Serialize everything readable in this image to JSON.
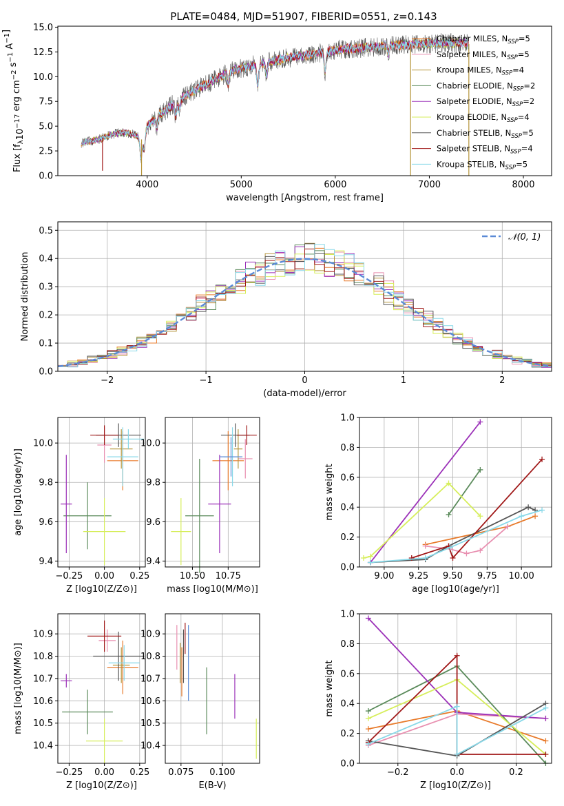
{
  "figure_title": "PLATE=0484, MJD=51907, FIBERID=0551, z=0.143",
  "colors": {
    "c1": "#e87a2a",
    "c2": "#e88fb0",
    "c3": "#b5943a",
    "c4": "#5a8a5a",
    "c5": "#9b30b8",
    "c6": "#d6ee5a",
    "c7": "#555555",
    "c8": "#a01818",
    "c9": "#88d8e8",
    "grid": "#b0b0b0",
    "gauss": "#5b8ad6"
  },
  "chart_data": [
    {
      "id": "spectrum",
      "type": "line",
      "xlabel": "wavelength [Angstrom, rest frame]",
      "ylabel": "Flux [f_λ 10^-17 erg cm^-2 s^-1 A^-1]",
      "xlim": [
        3050,
        8300
      ],
      "ylim": [
        0,
        15.1
      ],
      "xticks": [
        4000,
        5000,
        6000,
        7000,
        8000
      ],
      "yticks": [
        0.0,
        2.5,
        5.0,
        7.5,
        10.0,
        12.5,
        15.0
      ],
      "grid": false,
      "legend_position": "top-right",
      "legend": [
        {
          "label": "Chabrier MILES, N",
          "sub": "SSP",
          "value": "=5",
          "color": "c1"
        },
        {
          "label": "Salpeter MILES, N",
          "sub": "SSP",
          "value": "=5",
          "color": "c2"
        },
        {
          "label": "Kroupa MILES, N",
          "sub": "SSP",
          "value": "=4",
          "color": "c3"
        },
        {
          "label": "Chabrier ELODIE, N",
          "sub": "SSP",
          "value": "=2",
          "color": "c4"
        },
        {
          "label": "Salpeter ELODIE, N",
          "sub": "SSP",
          "value": "=2",
          "color": "c5"
        },
        {
          "label": "Kroupa ELODIE, N",
          "sub": "SSP",
          "value": "=4",
          "color": "c6"
        },
        {
          "label": "Chabrier STELIB, N",
          "sub": "SSP",
          "value": "=5",
          "color": "c7"
        },
        {
          "label": "Salpeter STELIB, N",
          "sub": "SSP",
          "value": "=4",
          "color": "c8"
        },
        {
          "label": "Kroupa STELIB, N",
          "sub": "SSP",
          "value": "=5",
          "color": "c9"
        }
      ],
      "continuum": [
        [
          3300,
          3.3
        ],
        [
          3500,
          3.7
        ],
        [
          3600,
          4.1
        ],
        [
          3750,
          4.4
        ],
        [
          3850,
          4.2
        ],
        [
          3950,
          3.6
        ],
        [
          4000,
          5.0
        ],
        [
          4100,
          5.9
        ],
        [
          4300,
          7.4
        ],
        [
          4500,
          8.6
        ],
        [
          4700,
          9.6
        ],
        [
          4900,
          10.6
        ],
        [
          5100,
          11.1
        ],
        [
          5300,
          11.5
        ],
        [
          5500,
          11.9
        ],
        [
          5700,
          12.2
        ],
        [
          5900,
          12.5
        ],
        [
          6100,
          12.8
        ],
        [
          6300,
          12.9
        ],
        [
          6500,
          13.1
        ],
        [
          6700,
          13.2
        ],
        [
          6900,
          13.3
        ],
        [
          7100,
          13.4
        ],
        [
          7300,
          13.4
        ],
        [
          7420,
          13.3
        ]
      ],
      "data_range": [
        3300,
        7420
      ],
      "dips": [
        [
          3934,
          2.0
        ],
        [
          3969,
          1.5
        ],
        [
          4102,
          1.0
        ],
        [
          4304,
          1.5
        ],
        [
          4340,
          1.0
        ],
        [
          4861,
          1.3
        ],
        [
          5175,
          2.2
        ],
        [
          5270,
          1.3
        ],
        [
          5890,
          2.0
        ],
        [
          6563,
          0.8
        ]
      ],
      "spikes": [
        [
          3525,
          0.5
        ],
        [
          3940,
          0
        ],
        [
          6800,
          0
        ],
        [
          7420,
          0
        ]
      ]
    },
    {
      "id": "residuals",
      "type": "step-histogram",
      "xlabel": "(data-model)/error",
      "ylabel": "Normed distribution",
      "xlim": [
        -2.5,
        2.5
      ],
      "ylim": [
        0,
        0.53
      ],
      "xticks": [
        -2,
        -1,
        0,
        1,
        2
      ],
      "yticks": [
        0.0,
        0.1,
        0.2,
        0.3,
        0.4,
        0.5
      ],
      "grid": true,
      "legend_position": "top-right",
      "legend": [
        {
          "label": "𝒩(0, 1)",
          "style": "dashed",
          "color": "gauss"
        }
      ],
      "bin_width": 0.1,
      "bin_start": -2.5,
      "gaussian": {
        "mean": 0,
        "sigma": 1
      }
    },
    {
      "id": "age-vs-Z",
      "type": "errorbar",
      "xlabel": "Z [log10(Z/Z⊙)]",
      "ylabel": "age  [log10(age/yr)]",
      "xlim": [
        -0.33,
        0.29
      ],
      "ylim": [
        9.37,
        10.13
      ],
      "xticks": [
        -0.25,
        0.0,
        0.25
      ],
      "xticklabels": [
        "−0.25",
        "0.00",
        "0.25"
      ],
      "yticks": [
        9.4,
        9.6,
        9.8,
        10.0
      ],
      "yticklabels": [
        "9.4",
        "9.6",
        "9.8",
        "10.0"
      ],
      "grid": true,
      "points": [
        {
          "color": "c1",
          "x": 0.13,
          "xerr": 0.11,
          "y": 9.91,
          "yerr": 0.15
        },
        {
          "color": "c2",
          "x": 0.0,
          "xerr": 0.05,
          "y": 9.99,
          "yerr": 0.09
        },
        {
          "color": "c3",
          "x": 0.12,
          "xerr": 0.08,
          "y": 9.97,
          "yerr": 0.1
        },
        {
          "color": "c4",
          "x": -0.12,
          "xerr": 0.17,
          "y": 9.63,
          "yerr": 0.17
        },
        {
          "color": "c5",
          "x": -0.27,
          "xerr": 0.04,
          "y": 9.69,
          "yerr": 0.25
        },
        {
          "color": "c6",
          "x": 0.0,
          "xerr": 0.15,
          "y": 9.55,
          "yerr": 0.17
        },
        {
          "color": "c7",
          "x": 0.1,
          "xerr": 0.16,
          "y": 10.04,
          "yerr": 0.06
        },
        {
          "color": "c8",
          "x": -0.0,
          "xerr": 0.1,
          "y": 10.04,
          "yerr": 0.05
        },
        {
          "color": "c9",
          "x": 0.13,
          "xerr": 0.11,
          "y": 9.93,
          "yerr": 0.15
        },
        {
          "color": "c9",
          "x": 0.17,
          "xerr": 0.11,
          "y": 10.02,
          "yerr": 0.05
        }
      ]
    },
    {
      "id": "age-vs-mass",
      "type": "errorbar",
      "xlabel": "mass [log10(M/M⊙)]",
      "ylabel": "",
      "xlim": [
        10.31,
        10.97
      ],
      "ylim": [
        9.37,
        10.13
      ],
      "xticks": [
        10.5,
        10.75
      ],
      "xticklabels": [
        "10.50",
        "10.75"
      ],
      "yticks": [
        9.4,
        9.6,
        9.8,
        10.0
      ],
      "yticklabels": [
        "9.4",
        "9.6",
        "9.8",
        "10.0"
      ],
      "grid": true,
      "points": [
        {
          "color": "c1",
          "x": 10.75,
          "xerr": 0.11,
          "y": 9.91,
          "yerr": 0.15
        },
        {
          "color": "c2",
          "x": 10.87,
          "xerr": 0.05,
          "y": 9.92,
          "yerr": 0.1
        },
        {
          "color": "c3",
          "x": 10.82,
          "xerr": 0.03,
          "y": 9.97,
          "yerr": 0.1
        },
        {
          "color": "c4",
          "x": 10.55,
          "xerr": 0.1,
          "y": 9.63,
          "yerr": 0.29
        },
        {
          "color": "c5",
          "x": 10.69,
          "xerr": 0.08,
          "y": 9.69,
          "yerr": 0.25
        },
        {
          "color": "c6",
          "x": 10.42,
          "xerr": 0.07,
          "y": 9.55,
          "yerr": 0.17
        },
        {
          "color": "c7",
          "x": 10.8,
          "xerr": 0.1,
          "y": 10.04,
          "yerr": 0.06
        },
        {
          "color": "c8",
          "x": 10.88,
          "xerr": 0.07,
          "y": 10.04,
          "yerr": 0.05
        },
        {
          "color": "c9",
          "x": 10.78,
          "xerr": 0.06,
          "y": 9.93,
          "yerr": 0.15
        },
        {
          "color": "gauss",
          "x": 10.77,
          "xerr": 0.08,
          "y": 9.93,
          "yerr": 0.1
        }
      ]
    },
    {
      "id": "weights-vs-age",
      "type": "line",
      "xlabel": "age  [log10(age/yr)]",
      "ylabel": "mass weight",
      "xlim": [
        8.82,
        10.22
      ],
      "ylim": [
        0,
        1.0
      ],
      "xticks": [
        9.0,
        9.25,
        9.5,
        9.75,
        10.0
      ],
      "xticklabels": [
        "9.00",
        "9.25",
        "9.50",
        "9.75",
        "10.00"
      ],
      "yticks": [
        0.0,
        0.2,
        0.4,
        0.6,
        0.8,
        1.0
      ],
      "yticklabels": [
        "0.0",
        "0.2",
        "0.4",
        "0.6",
        "0.8",
        "1.0"
      ],
      "grid": true,
      "series": [
        {
          "color": "c1",
          "x": [
            9.3,
            9.9,
            10.1
          ],
          "y": [
            0.15,
            0.27,
            0.34
          ]
        },
        {
          "color": "c2",
          "x": [
            9.3,
            9.48,
            9.6,
            9.7,
            9.9
          ],
          "y": [
            0.14,
            0.12,
            0.09,
            0.11,
            0.27
          ]
        },
        {
          "color": "c4",
          "x": [
            9.47,
            9.7
          ],
          "y": [
            0.35,
            0.65
          ]
        },
        {
          "color": "c5",
          "x": [
            8.9,
            9.7
          ],
          "y": [
            0.03,
            0.97
          ]
        },
        {
          "color": "c6",
          "x": [
            8.85,
            8.9,
            9.47,
            9.7
          ],
          "y": [
            0.06,
            0.07,
            0.56,
            0.34
          ]
        },
        {
          "color": "c7",
          "x": [
            8.9,
            9.3,
            9.47,
            10.05,
            10.1
          ],
          "y": [
            0.03,
            0.05,
            0.14,
            0.4,
            0.38
          ]
        },
        {
          "color": "c8",
          "x": [
            9.2,
            9.47,
            9.5,
            10.15
          ],
          "y": [
            0.06,
            0.14,
            0.06,
            0.72
          ]
        },
        {
          "color": "c9",
          "x": [
            8.9,
            9.3,
            9.48,
            10.0,
            10.15
          ],
          "y": [
            0.03,
            0.06,
            0.13,
            0.34,
            0.38
          ]
        }
      ]
    },
    {
      "id": "mass-vs-Z",
      "type": "errorbar",
      "xlabel": "Z [log10(Z/Z⊙)]",
      "ylabel": "mass [log10(M/M⊙)]",
      "xlim": [
        -0.33,
        0.29
      ],
      "ylim": [
        10.32,
        10.99
      ],
      "xticks": [
        -0.25,
        0.0,
        0.25
      ],
      "xticklabels": [
        "−0.25",
        "0.00",
        "0.25"
      ],
      "yticks": [
        10.4,
        10.5,
        10.6,
        10.7,
        10.8,
        10.9
      ],
      "yticklabels": [
        "10.4",
        "10.5",
        "10.6",
        "10.7",
        "10.8",
        "10.9"
      ],
      "grid": true,
      "points": [
        {
          "color": "c1",
          "x": 0.13,
          "xerr": 0.11,
          "y": 10.75,
          "yerr": 0.12
        },
        {
          "color": "c2",
          "x": 0.02,
          "xerr": 0.06,
          "y": 10.87,
          "yerr": 0.05
        },
        {
          "color": "c3",
          "x": 0.12,
          "xerr": 0.06,
          "y": 10.76,
          "yerr": 0.08
        },
        {
          "color": "c4",
          "x": -0.12,
          "xerr": 0.18,
          "y": 10.55,
          "yerr": 0.1
        },
        {
          "color": "c5",
          "x": -0.27,
          "xerr": 0.04,
          "y": 10.69,
          "yerr": 0.03
        },
        {
          "color": "c6",
          "x": 0.0,
          "xerr": 0.13,
          "y": 10.42,
          "yerr": 0.1
        },
        {
          "color": "c7",
          "x": 0.1,
          "xerr": 0.18,
          "y": 10.8,
          "yerr": 0.11
        },
        {
          "color": "c8",
          "x": 0.0,
          "xerr": 0.12,
          "y": 10.89,
          "yerr": 0.07
        },
        {
          "color": "c9",
          "x": 0.14,
          "xerr": 0.11,
          "y": 10.77,
          "yerr": 0.08
        }
      ]
    },
    {
      "id": "mass-vs-ebv",
      "type": "errorbar",
      "xlabel": "E(B-V)",
      "ylabel": "",
      "xlim": [
        0.0655,
        0.1225
      ],
      "ylim": [
        10.32,
        10.99
      ],
      "xticks": [
        0.075,
        0.1
      ],
      "xticklabels": [
        "0.075",
        "0.100"
      ],
      "yticks": [
        10.4,
        10.5,
        10.6,
        10.7,
        10.8,
        10.9
      ],
      "yticklabels": [
        "10.4",
        "10.5",
        "10.6",
        "10.7",
        "10.8",
        "10.9"
      ],
      "grid": true,
      "points": [
        {
          "color": "c1",
          "x": 0.0755,
          "xerr": 0,
          "y": 10.73,
          "yerr": 0.11
        },
        {
          "color": "c2",
          "x": 0.0725,
          "xerr": 0,
          "y": 10.84,
          "yerr": 0.1
        },
        {
          "color": "c3",
          "x": 0.0745,
          "xerr": 0,
          "y": 10.77,
          "yerr": 0.09
        },
        {
          "color": "c4",
          "x": 0.0905,
          "xerr": 0,
          "y": 10.6,
          "yerr": 0.15
        },
        {
          "color": "c5",
          "x": 0.1075,
          "xerr": 0,
          "y": 10.62,
          "yerr": 0.1
        },
        {
          "color": "c6",
          "x": 0.1205,
          "xerr": 0,
          "y": 10.43,
          "yerr": 0.09
        },
        {
          "color": "c7",
          "x": 0.0765,
          "xerr": 0,
          "y": 10.8,
          "yerr": 0.12
        },
        {
          "color": "c8",
          "x": 0.0775,
          "xerr": 0,
          "y": 10.88,
          "yerr": 0.07
        },
        {
          "color": "gauss",
          "x": 0.0795,
          "xerr": 0,
          "y": 10.77,
          "yerr": 0.17
        }
      ]
    },
    {
      "id": "weights-vs-Z",
      "type": "line",
      "xlabel": "Z [log10(Z/Z⊙)]",
      "ylabel": "mass weight",
      "xlim": [
        -0.33,
        0.32
      ],
      "ylim": [
        0,
        1.0
      ],
      "xticks": [
        -0.2,
        0.0,
        0.2
      ],
      "xticklabels": [
        "−0.2",
        "0.0",
        "0.2"
      ],
      "yticks": [
        0.0,
        0.2,
        0.4,
        0.6,
        0.8,
        1.0
      ],
      "yticklabels": [
        "0.0",
        "0.2",
        "0.4",
        "0.6",
        "0.8",
        "1.0"
      ],
      "grid": true,
      "series": [
        {
          "color": "c1",
          "x": [
            -0.3,
            0.0,
            0.3
          ],
          "y": [
            0.23,
            0.35,
            0.15
          ]
        },
        {
          "color": "c2",
          "x": [
            -0.3,
            0.0,
            0.3
          ],
          "y": [
            0.12,
            0.33,
            0.3
          ]
        },
        {
          "color": "c4",
          "x": [
            -0.3,
            0.0,
            0.3
          ],
          "y": [
            0.35,
            0.65,
            0.0
          ]
        },
        {
          "color": "c5",
          "x": [
            -0.3,
            0.0,
            0.3
          ],
          "y": [
            0.97,
            0.34,
            0.3
          ]
        },
        {
          "color": "c6",
          "x": [
            -0.3,
            0.0,
            0.3
          ],
          "y": [
            0.3,
            0.56,
            0.06
          ]
        },
        {
          "color": "c7",
          "x": [
            -0.3,
            0.0,
            0.3
          ],
          "y": [
            0.15,
            0.05,
            0.4
          ]
        },
        {
          "color": "c8",
          "x": [
            -0.3,
            0.0,
            0.0,
            0.3
          ],
          "y": [
            0.14,
            0.72,
            0.06,
            0.06
          ]
        },
        {
          "color": "c9",
          "x": [
            -0.3,
            0.0,
            0.0,
            0.3
          ],
          "y": [
            0.13,
            0.38,
            0.06,
            0.37
          ]
        }
      ]
    }
  ]
}
